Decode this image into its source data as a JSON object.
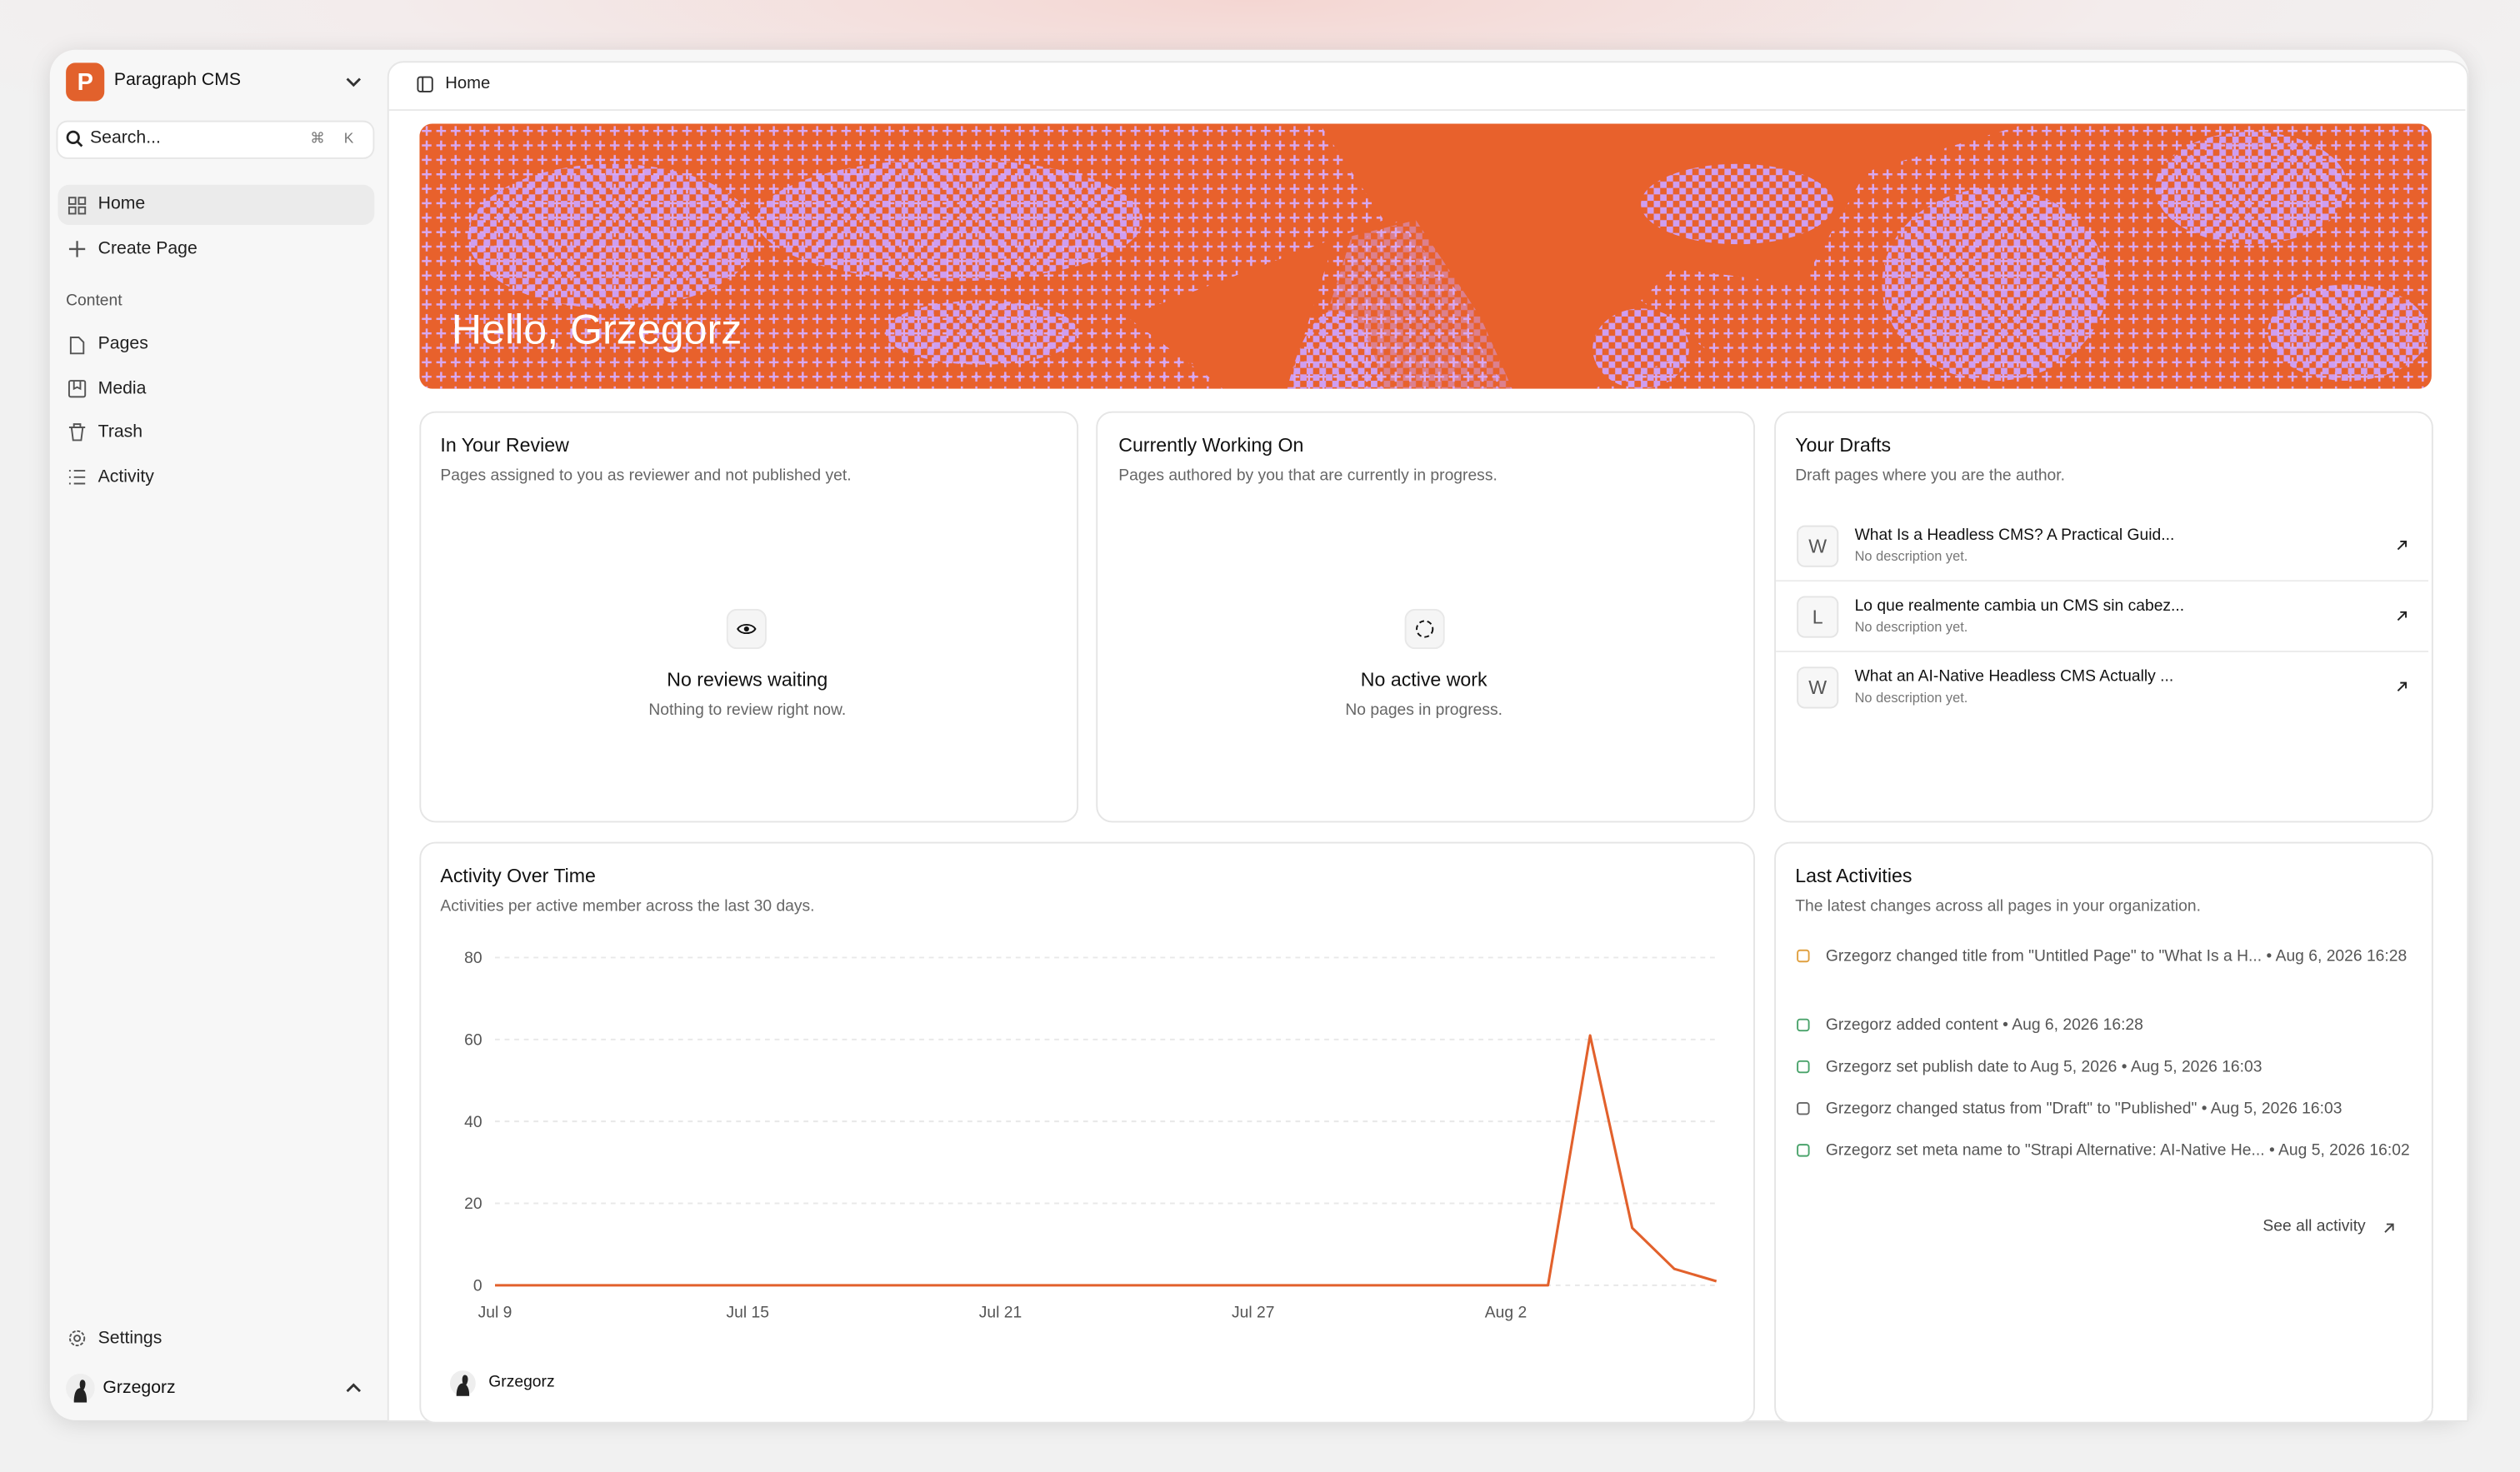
{
  "sidebar": {
    "workspace": "Paragraph CMS",
    "search": "Search...",
    "shortcut": [
      "⌘",
      "K"
    ],
    "nav": [
      "Home",
      "Create Page"
    ],
    "section": "Content",
    "content_nav": [
      "Pages",
      "Media",
      "Trash",
      "Activity"
    ],
    "settings": "Settings",
    "user": "Grzegorz"
  },
  "header": {
    "breadcrumb": "Home"
  },
  "banner": {
    "greeting": "Hello, Grzegorz"
  },
  "review": {
    "title": "In Your Review",
    "subtitle": "Pages assigned to you as reviewer and not published yet.",
    "empty_title": "No reviews waiting",
    "empty_text": "Nothing to review right now."
  },
  "working": {
    "title": "Currently Working On",
    "subtitle": "Pages authored by you that are currently in progress.",
    "empty_title": "No active work",
    "empty_text": "No pages in progress."
  },
  "drafts": {
    "title": "Your Drafts",
    "subtitle": "Draft pages where you are the author.",
    "items": [
      {
        "initial": "W",
        "title": "What Is a Headless CMS? A Practical Guid...",
        "description": "No description yet."
      },
      {
        "initial": "L",
        "title": "Lo que realmente cambia un CMS sin cabez...",
        "description": "No description yet."
      },
      {
        "initial": "W",
        "title": "What an AI-Native Headless CMS Actually ...",
        "description": "No description yet."
      }
    ]
  },
  "chart_data": {
    "type": "line",
    "title": "Activity Over Time",
    "subtitle": "Activities per active member across the last 30 days.",
    "categories": [
      "Jul 9",
      null,
      null,
      null,
      null,
      null,
      "Jul 15",
      null,
      null,
      null,
      null,
      null,
      "Jul 21",
      null,
      null,
      null,
      null,
      null,
      "Jul 27",
      null,
      null,
      null,
      null,
      null,
      "Aug 2",
      null,
      null,
      null,
      null,
      null
    ],
    "series": [
      {
        "name": "Grzegorz",
        "color": "#e2612c",
        "values": [
          0,
          0,
          0,
          0,
          0,
          0,
          0,
          0,
          0,
          0,
          0,
          0,
          0,
          0,
          0,
          0,
          0,
          0,
          0,
          0,
          0,
          0,
          0,
          0,
          0,
          0,
          61,
          14,
          4,
          1
        ]
      }
    ],
    "ylim": [
      0,
      80
    ],
    "yticks": [
      0,
      20,
      40,
      60,
      80
    ],
    "grid": true
  },
  "last_activities": {
    "title": "Last Activities",
    "subtitle": "The latest changes across all pages in your organization.",
    "separator": "•",
    "items": [
      {
        "text": "Grzegorz changed title from \"Untitled Page\" to \"What Is a H...",
        "time": "Aug 6, 2026 16:28"
      },
      {
        "text": "Grzegorz added content",
        "time": "Aug 6, 2026 16:28"
      },
      {
        "text": "Grzegorz set publish date to Aug 5, 2026",
        "time": "Aug 5, 2026 16:03"
      },
      {
        "text": "Grzegorz changed status from \"Draft\" to \"Published\"",
        "time": "Aug 5, 2026 16:03"
      },
      {
        "text": "Grzegorz set meta name to \"Strapi Alternative: AI-Native He...",
        "time": "Aug 5, 2026 16:02"
      }
    ],
    "link": "See all activity"
  }
}
